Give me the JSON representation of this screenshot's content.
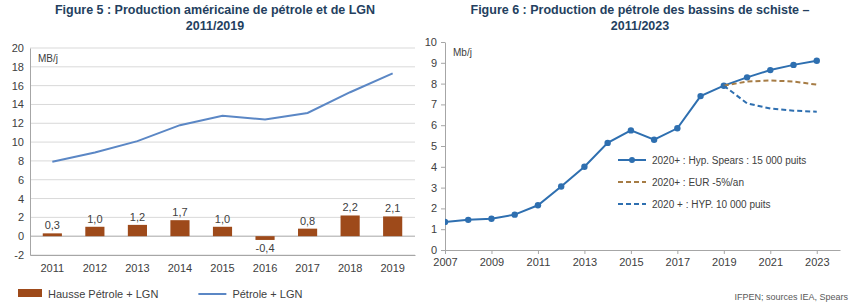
{
  "chart_data": [
    {
      "type": "bar",
      "title": [
        "Figure 5 : Production américaine de pétrole et de LGN",
        "2011/2019"
      ],
      "ylabel": "MB/j",
      "categories": [
        "2011",
        "2012",
        "2013",
        "2014",
        "2015",
        "2016",
        "2017",
        "2018",
        "2019"
      ],
      "series": [
        {
          "name": "Hausse Pétrole + LGN",
          "type": "bar",
          "color": "#9e4a1a",
          "values": [
            0.3,
            1.0,
            1.2,
            1.7,
            1.0,
            -0.4,
            0.8,
            2.2,
            2.1
          ],
          "value_labels": [
            "0,3",
            "1,0",
            "1,2",
            "1,7",
            "1,0",
            "-0,4",
            "0,8",
            "2,2",
            "2,1"
          ],
          "data_labels": true
        },
        {
          "name": "Pétrole + LGN",
          "type": "line",
          "color": "#5b87c5",
          "line_style": "solid",
          "values": [
            7.9,
            8.9,
            10.1,
            11.8,
            12.8,
            12.4,
            13.1,
            15.3,
            17.3
          ]
        }
      ],
      "ylim": [
        -2,
        20
      ],
      "yticks": [
        -2,
        0,
        2,
        4,
        6,
        8,
        10,
        12,
        14,
        16,
        18,
        20
      ],
      "grid": true,
      "legend": "bottom"
    },
    {
      "type": "line",
      "title": [
        "Figure 6 : Production de pétrole des bassins de schiste –",
        "2011/2023"
      ],
      "ylabel": "Mb/j",
      "x": [
        2007,
        2008,
        2009,
        2010,
        2011,
        2012,
        2013,
        2014,
        2015,
        2016,
        2017,
        2018,
        2019,
        2020,
        2021,
        2022,
        2023
      ],
      "series": [
        {
          "name": "2020+ : Hyp. Spears : 15 000 puits",
          "color": "#2e6fb0",
          "line_style": "solid",
          "marker": "circle",
          "values": [
            1.35,
            1.45,
            1.5,
            1.7,
            2.15,
            3.05,
            4.0,
            5.15,
            5.75,
            5.3,
            5.85,
            7.4,
            7.9,
            8.3,
            8.65,
            8.9,
            9.1
          ]
        },
        {
          "name": "2020+ : EUR -5%/an",
          "color": "#a67c45",
          "line_style": "dashed",
          "values": [
            null,
            null,
            null,
            null,
            null,
            null,
            null,
            null,
            null,
            null,
            null,
            null,
            7.9,
            8.1,
            8.15,
            8.1,
            7.95
          ]
        },
        {
          "name": "2020 + : HYP. 10 000 puits",
          "color": "#2e6fb0",
          "line_style": "dashed",
          "values": [
            null,
            null,
            null,
            null,
            null,
            null,
            null,
            null,
            null,
            null,
            null,
            null,
            7.9,
            7.05,
            6.8,
            6.7,
            6.65
          ]
        }
      ],
      "xlim": [
        2007,
        2024
      ],
      "xticks": [
        2007,
        2009,
        2011,
        2013,
        2015,
        2017,
        2019,
        2021,
        2023
      ],
      "ylim": [
        0,
        10
      ],
      "yticks": [
        0,
        1,
        2,
        3,
        4,
        5,
        6,
        7,
        8,
        9,
        10
      ],
      "grid": false,
      "legend": "right",
      "source": "IFPEN; sources IEA, Spears"
    }
  ]
}
